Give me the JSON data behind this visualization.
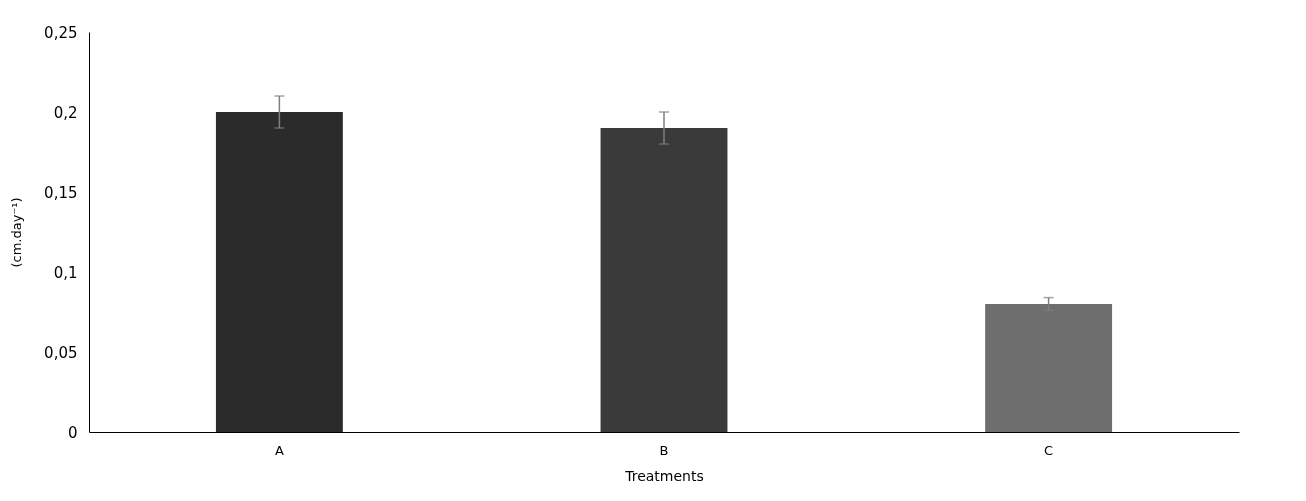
{
  "chart_data": {
    "type": "bar",
    "xlabel": "Treatments",
    "ylabel": "(cm.day⁻¹)",
    "categories": [
      "A",
      "B",
      "C"
    ],
    "values": [
      0.2,
      0.19,
      0.08
    ],
    "errors": [
      0.01,
      0.01,
      0.004
    ],
    "colors": [
      "#2b2b2b",
      "#3a3a3a",
      "#6e6e6e"
    ],
    "ylim": [
      0,
      0.25
    ],
    "yticks": [
      0,
      {
        "value": 0.05,
        "label": "0,05"
      },
      {
        "value": 0.1,
        "label": "0,1"
      },
      {
        "value": 0.15,
        "label": "0,15"
      },
      {
        "value": 0.2,
        "label": "0,2"
      },
      {
        "value": 0.25,
        "label": "0,25"
      }
    ],
    "grid": false,
    "legend": false
  }
}
